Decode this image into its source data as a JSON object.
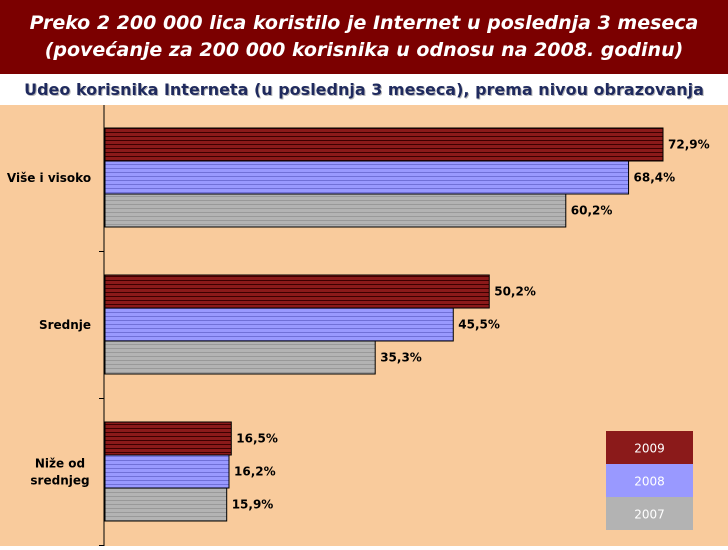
{
  "header": {
    "line1": "Preko 2 200 000 lica koristilo je Internet u poslednja 3 meseca",
    "line2": "(povećanje za 200 000 korisnika u odnosu na 2008. godinu)"
  },
  "colors": {
    "header_bg": "#7b0000",
    "plot_bg": "#f9cb9c",
    "series_2009": "#8b1a1a",
    "series_2008": "#9999ff",
    "series_2007": "#b3b3b3"
  },
  "chart_data": {
    "type": "bar",
    "orientation": "horizontal",
    "title": "Udeo korisnika Interneta (u poslednja 3 meseca), prema nivou obrazovanja",
    "categories": [
      "Više i visoko",
      "Srednje",
      "Niže od srednjeg"
    ],
    "series": [
      {
        "name": "2009",
        "values": [
          72.9,
          50.2,
          16.5
        ],
        "labels": [
          "72,9%",
          "50,2%",
          "16,5%"
        ]
      },
      {
        "name": "2008",
        "values": [
          68.4,
          45.5,
          16.2
        ],
        "labels": [
          "68,4%",
          "45,5%",
          "16,2%"
        ]
      },
      {
        "name": "2007",
        "values": [
          60.2,
          35.3,
          15.9
        ],
        "labels": [
          "60,2%",
          "35,3%",
          "15,9%"
        ]
      }
    ],
    "xlim": [
      0,
      80
    ],
    "grid": false,
    "legend_position": "bottom-right"
  }
}
